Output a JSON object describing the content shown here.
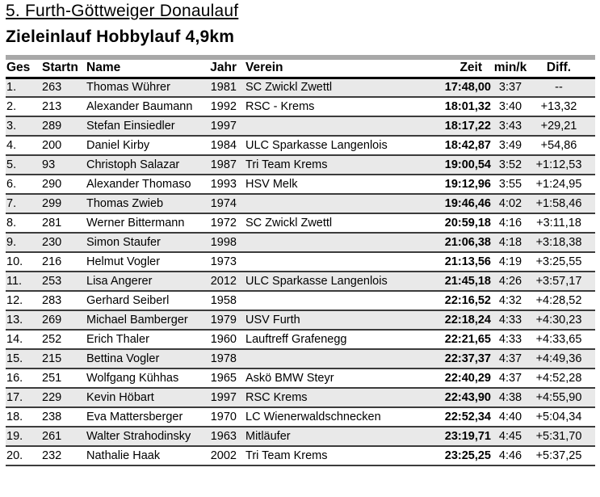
{
  "page": {
    "title": "5. Furth-Göttweiger Donaulauf",
    "subtitle": "Zieleinlauf Hobbylauf 4,9km"
  },
  "colors": {
    "divider_bar": "#a8a8a8",
    "row_alt_background": "#e9e9e9",
    "row_separator": "#3c3c3c",
    "header_rule": "#000000"
  },
  "table": {
    "columns": {
      "ges": "Ges",
      "startn": "Startn",
      "name": "Name",
      "jahr": "Jahr",
      "verein": "Verein",
      "zeit": "Zeit",
      "mink": "min/k",
      "diff": "Diff."
    },
    "rows": [
      {
        "ges": "1.",
        "startn": "263",
        "name": "Thomas Wührer",
        "jahr": "1981",
        "verein": "SC Zwickl Zwettl",
        "zeit": "17:48,00",
        "mink": "3:37",
        "diff": "--"
      },
      {
        "ges": "2.",
        "startn": "213",
        "name": "Alexander Baumann",
        "jahr": "1992",
        "verein": "RSC - Krems",
        "zeit": "18:01,32",
        "mink": "3:40",
        "diff": "+13,32"
      },
      {
        "ges": "3.",
        "startn": "289",
        "name": "Stefan Einsiedler",
        "jahr": "1997",
        "verein": "",
        "zeit": "18:17,22",
        "mink": "3:43",
        "diff": "+29,21"
      },
      {
        "ges": "4.",
        "startn": "200",
        "name": "Daniel Kirby",
        "jahr": "1984",
        "verein": "ULC Sparkasse Langenlois",
        "zeit": "18:42,87",
        "mink": "3:49",
        "diff": "+54,86"
      },
      {
        "ges": "5.",
        "startn": "93",
        "name": "Christoph Salazar",
        "jahr": "1987",
        "verein": "Tri Team Krems",
        "zeit": "19:00,54",
        "mink": "3:52",
        "diff": "+1:12,53"
      },
      {
        "ges": "6.",
        "startn": "290",
        "name": "Alexander Thomaso",
        "jahr": "1993",
        "verein": "HSV Melk",
        "zeit": "19:12,96",
        "mink": "3:55",
        "diff": "+1:24,95"
      },
      {
        "ges": "7.",
        "startn": "299",
        "name": "Thomas Zwieb",
        "jahr": "1974",
        "verein": "",
        "zeit": "19:46,46",
        "mink": "4:02",
        "diff": "+1:58,46"
      },
      {
        "ges": "8.",
        "startn": "281",
        "name": "Werner Bittermann",
        "jahr": "1972",
        "verein": "SC Zwickl Zwettl",
        "zeit": "20:59,18",
        "mink": "4:16",
        "diff": "+3:11,18"
      },
      {
        "ges": "9.",
        "startn": "230",
        "name": "Simon Staufer",
        "jahr": "1998",
        "verein": "",
        "zeit": "21:06,38",
        "mink": "4:18",
        "diff": "+3:18,38"
      },
      {
        "ges": "10.",
        "startn": "216",
        "name": "Helmut Vogler",
        "jahr": "1973",
        "verein": "",
        "zeit": "21:13,56",
        "mink": "4:19",
        "diff": "+3:25,55"
      },
      {
        "ges": "11.",
        "startn": "253",
        "name": "Lisa Angerer",
        "jahr": "2012",
        "verein": "ULC Sparkasse Langenlois",
        "zeit": "21:45,18",
        "mink": "4:26",
        "diff": "+3:57,17"
      },
      {
        "ges": "12.",
        "startn": "283",
        "name": "Gerhard Seiberl",
        "jahr": "1958",
        "verein": "",
        "zeit": "22:16,52",
        "mink": "4:32",
        "diff": "+4:28,52"
      },
      {
        "ges": "13.",
        "startn": "269",
        "name": "Michael Bamberger",
        "jahr": "1979",
        "verein": "USV Furth",
        "zeit": "22:18,24",
        "mink": "4:33",
        "diff": "+4:30,23"
      },
      {
        "ges": "14.",
        "startn": "252",
        "name": "Erich Thaler",
        "jahr": "1960",
        "verein": "Lauftreff Grafenegg",
        "zeit": "22:21,65",
        "mink": "4:33",
        "diff": "+4:33,65"
      },
      {
        "ges": "15.",
        "startn": "215",
        "name": "Bettina Vogler",
        "jahr": "1978",
        "verein": "",
        "zeit": "22:37,37",
        "mink": "4:37",
        "diff": "+4:49,36"
      },
      {
        "ges": "16.",
        "startn": "251",
        "name": "Wolfgang Kühhas",
        "jahr": "1965",
        "verein": "Askö BMW Steyr",
        "zeit": "22:40,29",
        "mink": "4:37",
        "diff": "+4:52,28"
      },
      {
        "ges": "17.",
        "startn": "229",
        "name": "Kevin Höbart",
        "jahr": "1997",
        "verein": "RSC Krems",
        "zeit": "22:43,90",
        "mink": "4:38",
        "diff": "+4:55,90"
      },
      {
        "ges": "18.",
        "startn": "238",
        "name": "Eva Mattersberger",
        "jahr": "1970",
        "verein": "LC Wienerwaldschnecken",
        "zeit": "22:52,34",
        "mink": "4:40",
        "diff": "+5:04,34"
      },
      {
        "ges": "19.",
        "startn": "261",
        "name": "Walter Strahodinsky",
        "jahr": "1963",
        "verein": "Mitläufer",
        "zeit": "23:19,71",
        "mink": "4:45",
        "diff": "+5:31,70"
      },
      {
        "ges": "20.",
        "startn": "232",
        "name": "Nathalie Haak",
        "jahr": "2002",
        "verein": "Tri Team Krems",
        "zeit": "23:25,25",
        "mink": "4:46",
        "diff": "+5:37,25"
      }
    ]
  }
}
